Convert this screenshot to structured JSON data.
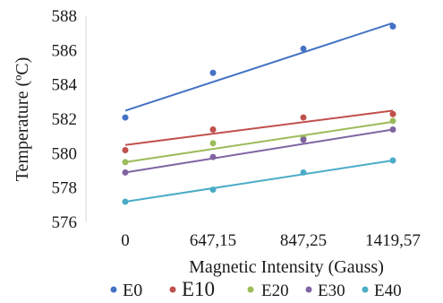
{
  "chart_data": {
    "type": "scatter",
    "categories": [
      "0",
      "647,15",
      "847,25",
      "1419,57"
    ],
    "xlabel": "Magnetic Intensity (Gauss)",
    "ylabel": "Temperature (ºC)",
    "ylim": [
      576,
      588
    ],
    "yticks": [
      "576",
      "578",
      "580",
      "582",
      "584",
      "586",
      "588"
    ],
    "grid": false,
    "legend_position": "bottom",
    "trendlines": true,
    "series": [
      {
        "name": "E0",
        "color": "#4472c4",
        "values": [
          582.1,
          584.7,
          586.1,
          587.4
        ],
        "trend": [
          582.5,
          587.6
        ]
      },
      {
        "name": "E10",
        "color": "#c0504d",
        "values": [
          580.2,
          581.4,
          582.1,
          582.3
        ],
        "trend": [
          580.5,
          582.5
        ]
      },
      {
        "name": "E20",
        "color": "#9bbb59",
        "values": [
          579.5,
          580.6,
          580.9,
          581.9
        ],
        "trend": [
          579.5,
          581.85
        ]
      },
      {
        "name": "E30",
        "color": "#8064a2",
        "values": [
          578.9,
          579.8,
          580.8,
          581.4
        ],
        "trend": [
          578.9,
          581.4
        ]
      },
      {
        "name": "E40",
        "color": "#4bacc6",
        "values": [
          577.2,
          577.9,
          578.9,
          579.6
        ],
        "trend": [
          577.2,
          579.6
        ]
      }
    ]
  }
}
